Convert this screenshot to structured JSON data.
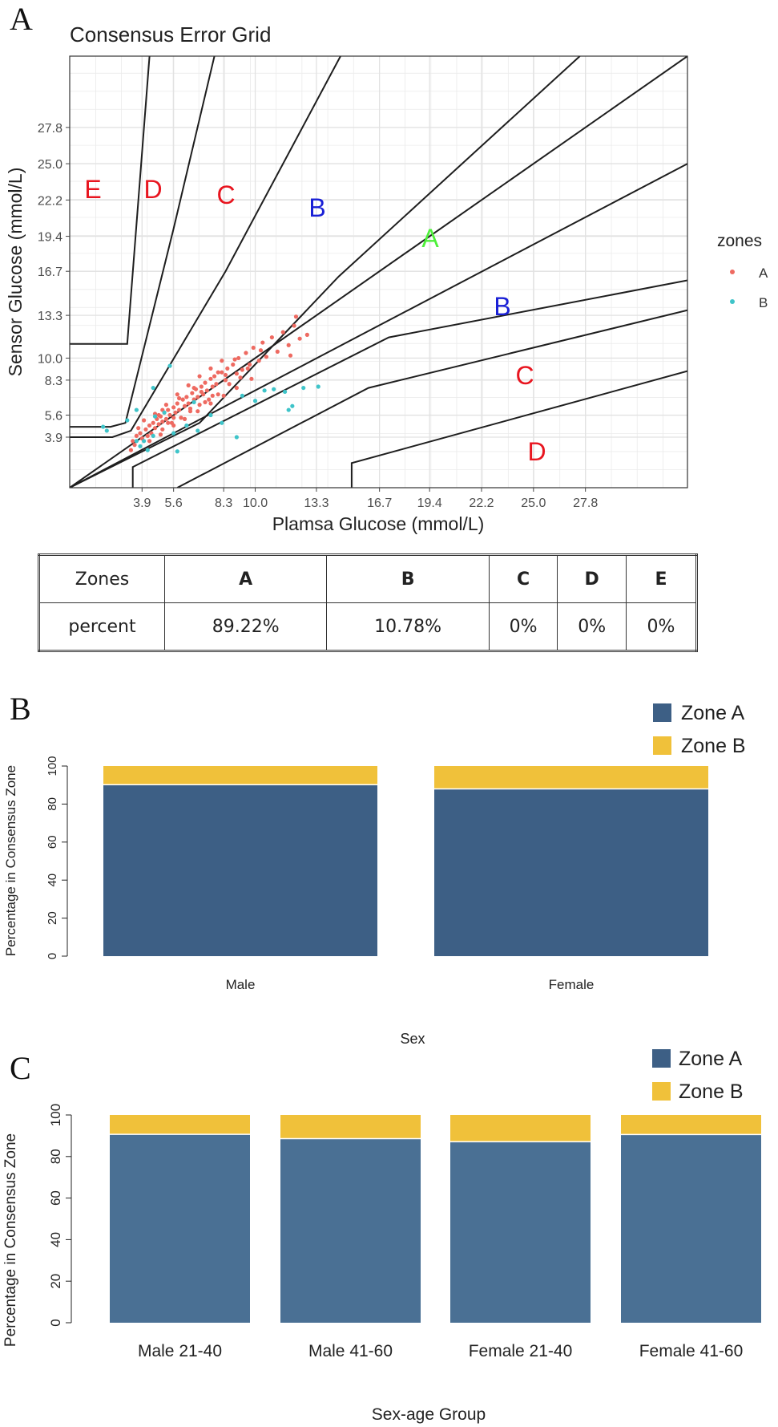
{
  "panels": {
    "a": "A",
    "b": "B",
    "c": "C"
  },
  "zone_labels": {
    "E": "E",
    "D": "D",
    "C": "C",
    "B": "B",
    "A": "A"
  },
  "colors": {
    "zone_A_point": "#ee6a61",
    "zone_B_point": "#3ec4c9",
    "label_red": "#e8151f",
    "label_blue": "#1a20d6",
    "label_green": "#4ef03a",
    "bar_zone_A_b": "#3d5f85",
    "bar_zone_A_c": "#4a7094",
    "bar_zone_B": "#f0c13a",
    "grid": "#ebebeb"
  },
  "chart_data": [
    {
      "type": "scatter",
      "title": "Consensus Error Grid",
      "xlabel": "Plamsa Glucose (mmol/L)",
      "ylabel": "Sensor Glucose (mmol/L)",
      "xlim": [
        0,
        33.3
      ],
      "ylim": [
        0,
        33.3
      ],
      "x_ticks": [
        "3.9",
        "5.6",
        "8.3",
        "10.0",
        "13.3",
        "16.7",
        "19.4",
        "22.2",
        "25.0",
        "27.8"
      ],
      "y_ticks": [
        "3.9",
        "5.6",
        "8.3",
        "10.0",
        "13.3",
        "16.7",
        "19.4",
        "22.2",
        "25.0",
        "27.8"
      ],
      "legend_title": "zones",
      "legend": [
        "A",
        "B"
      ],
      "legend_position": "right",
      "zone_A_points": [
        [
          3.3,
          2.9
        ],
        [
          3.5,
          3.3
        ],
        [
          3.4,
          3.6
        ],
        [
          3.6,
          4.0
        ],
        [
          3.8,
          4.2
        ],
        [
          3.9,
          3.8
        ],
        [
          4.1,
          4.5
        ],
        [
          4.2,
          4.0
        ],
        [
          4.3,
          4.8
        ],
        [
          4.4,
          4.2
        ],
        [
          4.5,
          5.0
        ],
        [
          4.6,
          4.6
        ],
        [
          4.7,
          5.3
        ],
        [
          4.8,
          4.9
        ],
        [
          4.9,
          5.5
        ],
        [
          5.0,
          5.1
        ],
        [
          5.0,
          4.5
        ],
        [
          5.1,
          5.8
        ],
        [
          5.2,
          5.3
        ],
        [
          5.3,
          6.0
        ],
        [
          5.4,
          5.6
        ],
        [
          5.5,
          5.0
        ],
        [
          5.6,
          6.2
        ],
        [
          5.7,
          5.8
        ],
        [
          5.8,
          6.5
        ],
        [
          5.9,
          6.0
        ],
        [
          6.0,
          5.4
        ],
        [
          6.1,
          6.8
        ],
        [
          6.2,
          6.3
        ],
        [
          6.3,
          7.0
        ],
        [
          6.4,
          6.5
        ],
        [
          6.5,
          5.9
        ],
        [
          6.6,
          7.3
        ],
        [
          6.7,
          6.8
        ],
        [
          6.8,
          7.6
        ],
        [
          6.9,
          7.0
        ],
        [
          7.0,
          6.4
        ],
        [
          7.1,
          7.8
        ],
        [
          7.2,
          7.2
        ],
        [
          7.3,
          8.1
        ],
        [
          7.4,
          7.5
        ],
        [
          7.5,
          6.8
        ],
        [
          7.6,
          8.4
        ],
        [
          7.7,
          7.8
        ],
        [
          7.8,
          8.6
        ],
        [
          7.9,
          8.0
        ],
        [
          8.0,
          7.2
        ],
        [
          8.2,
          8.9
        ],
        [
          8.4,
          8.3
        ],
        [
          8.5,
          9.2
        ],
        [
          8.6,
          8.0
        ],
        [
          8.8,
          9.5
        ],
        [
          9.0,
          8.8
        ],
        [
          9.1,
          10.0
        ],
        [
          9.3,
          9.1
        ],
        [
          9.5,
          10.4
        ],
        [
          9.7,
          9.5
        ],
        [
          9.9,
          10.8
        ],
        [
          10.2,
          9.8
        ],
        [
          10.4,
          11.2
        ],
        [
          10.6,
          10.1
        ],
        [
          10.9,
          11.6
        ],
        [
          11.2,
          10.5
        ],
        [
          11.5,
          12.0
        ],
        [
          11.8,
          11.0
        ],
        [
          12.1,
          12.5
        ],
        [
          12.4,
          11.5
        ],
        [
          12.8,
          11.8
        ],
        [
          12.2,
          13.2
        ],
        [
          11.9,
          10.2
        ],
        [
          3.7,
          4.6
        ],
        [
          4.0,
          5.2
        ],
        [
          4.6,
          5.7
        ],
        [
          5.2,
          6.4
        ],
        [
          5.8,
          7.2
        ],
        [
          6.4,
          7.9
        ],
        [
          7.0,
          8.6
        ],
        [
          7.6,
          9.2
        ],
        [
          8.2,
          9.8
        ],
        [
          4.3,
          3.6
        ],
        [
          4.9,
          4.1
        ],
        [
          5.6,
          4.8
        ],
        [
          6.2,
          5.3
        ],
        [
          6.9,
          5.9
        ],
        [
          7.6,
          6.5
        ],
        [
          8.3,
          7.1
        ],
        [
          9.0,
          7.7
        ],
        [
          9.8,
          8.4
        ],
        [
          4.8,
          5.6
        ],
        [
          5.3,
          5.0
        ],
        [
          5.9,
          6.9
        ],
        [
          6.5,
          6.1
        ],
        [
          7.1,
          7.4
        ],
        [
          7.7,
          7.1
        ],
        [
          8.4,
          8.7
        ],
        [
          9.2,
          8.5
        ],
        [
          5.0,
          6.0
        ],
        [
          5.6,
          5.4
        ],
        [
          6.7,
          7.7
        ],
        [
          7.3,
          6.6
        ],
        [
          8.0,
          8.9
        ],
        [
          8.9,
          9.9
        ],
        [
          9.6,
          9.2
        ],
        [
          10.3,
          10.6
        ]
      ],
      "zone_B_points": [
        [
          1.8,
          4.7
        ],
        [
          2.0,
          4.4
        ],
        [
          3.1,
          5.2
        ],
        [
          3.6,
          6.0
        ],
        [
          4.0,
          3.6
        ],
        [
          4.5,
          4.0
        ],
        [
          3.8,
          3.2
        ],
        [
          4.2,
          2.9
        ],
        [
          5.8,
          2.8
        ],
        [
          5.6,
          4.2
        ],
        [
          6.3,
          4.8
        ],
        [
          6.9,
          4.4
        ],
        [
          7.6,
          5.6
        ],
        [
          8.2,
          5.0
        ],
        [
          9.0,
          3.9
        ],
        [
          9.3,
          7.1
        ],
        [
          10.0,
          6.7
        ],
        [
          10.5,
          7.5
        ],
        [
          11.0,
          7.6
        ],
        [
          11.6,
          7.4
        ],
        [
          12.0,
          6.3
        ],
        [
          12.6,
          7.7
        ],
        [
          13.4,
          7.8
        ],
        [
          11.8,
          6.0
        ],
        [
          4.5,
          7.7
        ],
        [
          5.4,
          9.4
        ],
        [
          6.7,
          6.6
        ],
        [
          5.1,
          5.8
        ],
        [
          3.6,
          3.6
        ],
        [
          4.6,
          5.5
        ]
      ],
      "zone_lines": [
        [
          [
            0,
            11.1
          ],
          [
            3.1,
            11.1
          ],
          [
            4.3,
            33.3
          ]
        ],
        [
          [
            0,
            4.7
          ],
          [
            2.2,
            4.7
          ],
          [
            3.0,
            5.0
          ],
          [
            5.6,
            20.0
          ],
          [
            7.8,
            33.3
          ]
        ],
        [
          [
            0,
            3.9
          ],
          [
            2.3,
            3.9
          ],
          [
            3.3,
            4.4
          ],
          [
            8.4,
            16.7
          ],
          [
            14.6,
            33.3
          ]
        ],
        [
          [
            0,
            0
          ],
          [
            7.0,
            5.0
          ],
          [
            14.5,
            16.3
          ],
          [
            27.5,
            33.3
          ]
        ],
        [
          [
            0,
            0
          ],
          [
            33.3,
            33.3
          ]
        ],
        [
          [
            0,
            0
          ],
          [
            33.3,
            25.0
          ]
        ],
        [
          [
            3.4,
            0
          ],
          [
            3.4,
            1.6
          ],
          [
            17.2,
            11.6
          ],
          [
            33.3,
            16.0
          ]
        ],
        [
          [
            5.8,
            0
          ],
          [
            16.1,
            7.7
          ],
          [
            33.3,
            13.7
          ]
        ],
        [
          [
            15.2,
            0
          ],
          [
            15.2,
            1.9
          ],
          [
            33.3,
            9.0
          ]
        ]
      ]
    },
    {
      "type": "table",
      "headers": [
        "Zones",
        "A",
        "B",
        "C",
        "D",
        "E"
      ],
      "rows": [
        [
          "percent",
          "89.22%",
          "10.78%",
          "0%",
          "0%",
          "0%"
        ]
      ]
    },
    {
      "type": "bar",
      "stacked": true,
      "categories": [
        "Male",
        "Female"
      ],
      "series": [
        {
          "name": "Zone A",
          "values": [
            90.2,
            88.0
          ]
        },
        {
          "name": "Zone B",
          "values": [
            9.8,
            12.0
          ]
        }
      ],
      "xlabel": "Sex",
      "ylabel": "Percentage in Consensus Zone",
      "ylim": [
        0,
        100
      ],
      "y_ticks": [
        0,
        20,
        40,
        60,
        80,
        100
      ],
      "legend_position": "top-right"
    },
    {
      "type": "bar",
      "stacked": true,
      "categories": [
        "Male 21-40",
        "Male 41-60",
        "Female 21-40",
        "Female 41-60"
      ],
      "series": [
        {
          "name": "Zone A",
          "values": [
            90.7,
            88.6,
            87.1,
            90.6
          ]
        },
        {
          "name": "Zone B",
          "values": [
            9.3,
            11.4,
            12.9,
            9.4
          ]
        }
      ],
      "xlabel": "Sex-age Group",
      "ylabel": "Percentage in Consensus Zone",
      "ylim": [
        0,
        100
      ],
      "y_ticks": [
        0,
        20,
        40,
        60,
        80,
        100
      ],
      "legend_position": "top-right"
    }
  ]
}
